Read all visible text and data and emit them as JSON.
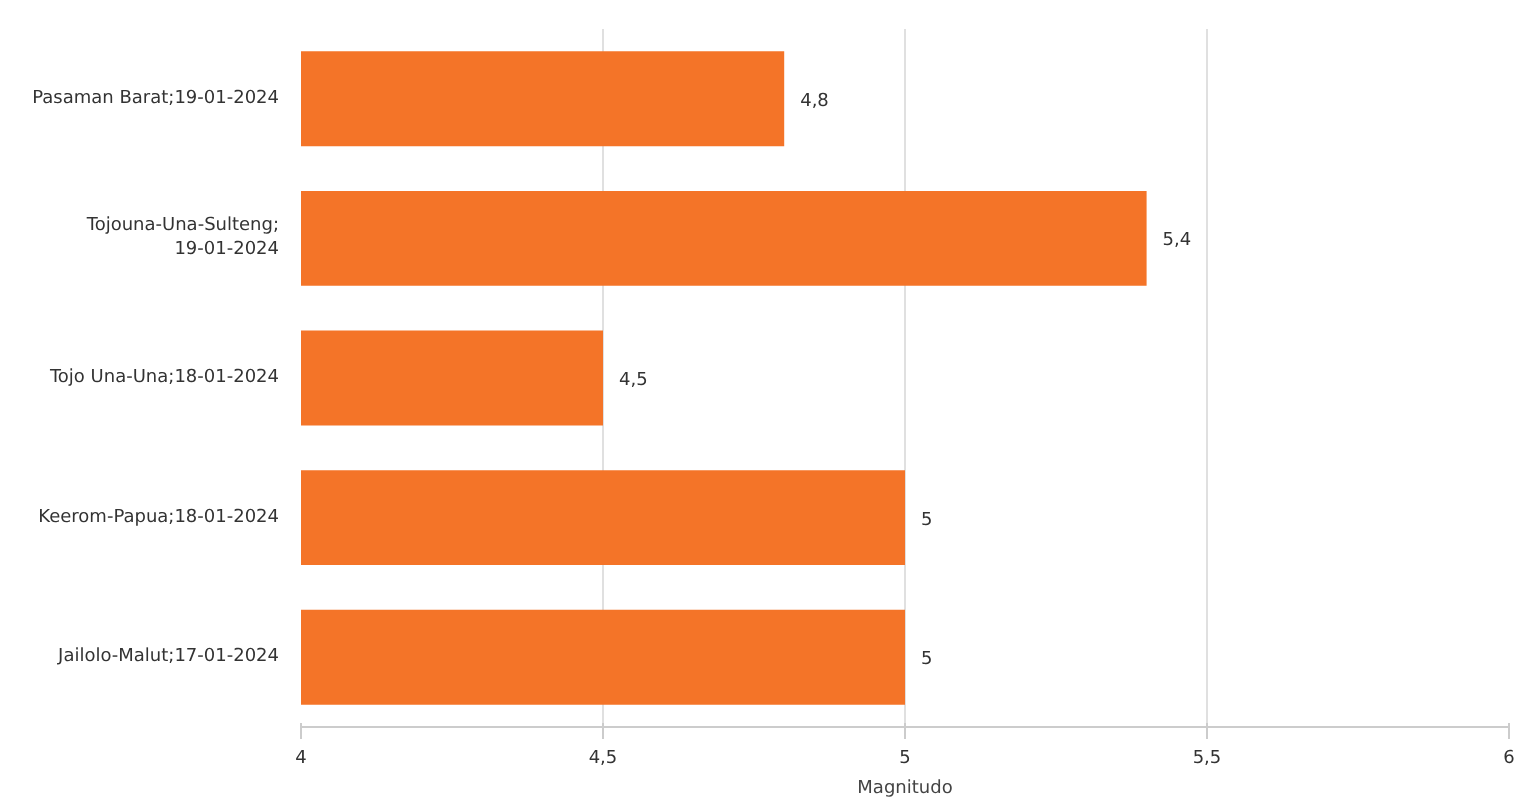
{
  "chart_data": {
    "type": "bar",
    "orientation": "horizontal",
    "xlabel": "Magnitudo",
    "categories": [
      "Pasaman Barat;19-01-2024",
      "Tojouna-Una-Sulteng;\n19-01-2024",
      "Tojo Una-Una;18-01-2024",
      "Keerom-Papua;18-01-2024",
      "Jailolo-Malut;17-01-2024"
    ],
    "values": [
      4.8,
      5.4,
      4.5,
      5,
      5
    ],
    "value_labels": [
      "4,8",
      "5,4",
      "4,5",
      "5",
      "5"
    ],
    "color": "#f47428",
    "xlim": [
      4,
      6
    ],
    "xticks": [
      4,
      {
        "value": 4.5,
        "label": "4,5"
      },
      5,
      {
        "value": 5.5,
        "label": "5,5"
      },
      6
    ],
    "grid": "x"
  }
}
